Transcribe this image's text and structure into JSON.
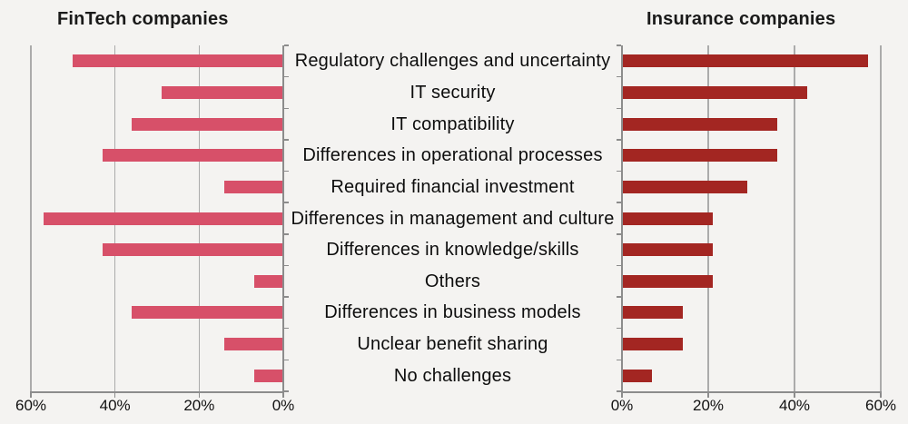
{
  "chart_data": {
    "type": "bar",
    "layout": "horizontal-mirrored-tornado",
    "title_left": "FinTech companies",
    "title_right": "Insurance companies",
    "categories": [
      "Regulatory challenges and uncertainty",
      "IT security",
      "IT compatibility",
      "Differences in operational processes",
      "Required financial investment",
      "Differences in management and culture",
      "Differences in knowledge/skills",
      "Others",
      "Differences in business models",
      "Unclear benefit sharing",
      "No challenges"
    ],
    "series": [
      {
        "name": "FinTech companies",
        "unit": "%",
        "color": "#d75069",
        "values": [
          50,
          29,
          36,
          43,
          14,
          57,
          43,
          7,
          36,
          14,
          7
        ]
      },
      {
        "name": "Insurance companies",
        "unit": "%",
        "color": "#a32622",
        "values": [
          57,
          43,
          36,
          36,
          29,
          21,
          21,
          21,
          14,
          14,
          7
        ]
      }
    ],
    "xlim": [
      0,
      60
    ],
    "grid": true,
    "left_axis": {
      "tick_values": [
        60,
        40,
        20,
        0
      ],
      "tick_labels": [
        "60%",
        "40%",
        "20%",
        "0%"
      ]
    },
    "right_axis": {
      "tick_values": [
        0,
        20,
        40,
        60
      ],
      "tick_labels": [
        "0%",
        "20%",
        "40%",
        "60%"
      ]
    }
  },
  "colors": {
    "background": "#f4f3f1",
    "fintech_bar": "#d75069",
    "insurance_bar": "#a32622",
    "gridline": "#ababab",
    "axis": "#8c8c8c",
    "text": "#111111"
  }
}
